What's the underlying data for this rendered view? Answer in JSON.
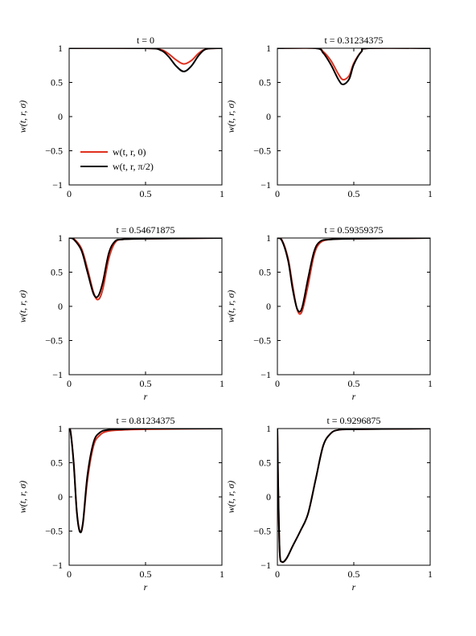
{
  "colors": {
    "series_0": "#e0301e",
    "series_pi2": "#000000",
    "frame": "#000000"
  },
  "chart_data": [
    {
      "type": "line",
      "title": "t = 0",
      "xlabel": "",
      "ylabel": "w(t, r, σ)",
      "xlim": [
        0,
        1
      ],
      "ylim": [
        -1,
        1
      ],
      "xticks": [
        "0",
        "0.5",
        "1"
      ],
      "yticks": [
        "1",
        "0.5",
        "0",
        "−0.5",
        "−1"
      ],
      "grid": false,
      "legend": {
        "placement": "lower-left",
        "entries": [
          "w(t, r, 0)",
          "w(t, r, π/2)"
        ]
      },
      "series": [
        {
          "name": "w(t, r, 0)",
          "x": [
            0,
            0.5,
            0.6,
            0.65,
            0.7,
            0.75,
            0.8,
            0.85,
            0.9,
            1.0
          ],
          "y": [
            1,
            1,
            0.98,
            0.92,
            0.83,
            0.77,
            0.82,
            0.93,
            0.99,
            1.0
          ]
        },
        {
          "name": "w(t, r, π/2)",
          "x": [
            0,
            0.5,
            0.6,
            0.65,
            0.7,
            0.75,
            0.8,
            0.85,
            0.9,
            1.0
          ],
          "y": [
            1,
            1,
            0.97,
            0.88,
            0.74,
            0.66,
            0.74,
            0.9,
            0.99,
            1.0
          ]
        }
      ]
    },
    {
      "type": "line",
      "title": "t = 0.31234375",
      "xlabel": "",
      "ylabel": "w(t, r, σ)",
      "xlim": [
        0,
        1
      ],
      "ylim": [
        -1,
        1
      ],
      "xticks": [
        "0",
        "0.5",
        "1"
      ],
      "yticks": [
        "1",
        "0.5",
        "0",
        "−0.5",
        "−1"
      ],
      "grid": false,
      "series": [
        {
          "name": "w(t, r, 0)",
          "x": [
            0,
            0.25,
            0.3,
            0.35,
            0.4,
            0.43,
            0.47,
            0.5,
            0.55,
            0.6,
            1.0
          ],
          "y": [
            1,
            1,
            0.95,
            0.82,
            0.62,
            0.54,
            0.6,
            0.78,
            0.95,
            1.0,
            1.0
          ]
        },
        {
          "name": "w(t, r, π/2)",
          "x": [
            0,
            0.25,
            0.3,
            0.35,
            0.4,
            0.43,
            0.47,
            0.5,
            0.55,
            0.6,
            1.0
          ],
          "y": [
            1,
            1,
            0.93,
            0.76,
            0.54,
            0.47,
            0.55,
            0.76,
            0.95,
            1.0,
            1.0
          ]
        }
      ]
    },
    {
      "type": "line",
      "title": "t = 0.54671875",
      "xlabel": "r",
      "ylabel": "w(t, r, σ)",
      "xlim": [
        0,
        1
      ],
      "ylim": [
        -1,
        1
      ],
      "xticks": [
        "0",
        "0.5",
        "1"
      ],
      "yticks": [
        "1",
        "0.5",
        "0",
        "−0.5",
        "−1"
      ],
      "grid": false,
      "series": [
        {
          "name": "w(t, r, 0)",
          "x": [
            0,
            0.03,
            0.08,
            0.12,
            0.16,
            0.19,
            0.22,
            0.26,
            0.3,
            0.35,
            0.5,
            1.0
          ],
          "y": [
            1,
            0.99,
            0.85,
            0.55,
            0.2,
            0.1,
            0.25,
            0.7,
            0.93,
            0.98,
            0.99,
            1.0
          ]
        },
        {
          "name": "w(t, r, π/2)",
          "x": [
            0,
            0.03,
            0.08,
            0.12,
            0.16,
            0.19,
            0.22,
            0.26,
            0.3,
            0.35,
            0.5,
            1.0
          ],
          "y": [
            1,
            0.98,
            0.82,
            0.5,
            0.18,
            0.15,
            0.35,
            0.78,
            0.95,
            0.98,
            0.99,
            1.0
          ]
        }
      ]
    },
    {
      "type": "line",
      "title": "t = 0.59359375",
      "xlabel": "r",
      "ylabel": "w(t, r, σ)",
      "xlim": [
        0,
        1
      ],
      "ylim": [
        -1,
        1
      ],
      "xticks": [
        "0",
        "0.5",
        "1"
      ],
      "yticks": [
        "1",
        "0.5",
        "0",
        "−0.5",
        "−1"
      ],
      "grid": false,
      "series": [
        {
          "name": "w(t, r, 0)",
          "x": [
            0,
            0.03,
            0.07,
            0.1,
            0.13,
            0.16,
            0.2,
            0.24,
            0.28,
            0.35,
            0.5,
            1.0
          ],
          "y": [
            1,
            0.97,
            0.7,
            0.3,
            -0.05,
            -0.08,
            0.3,
            0.75,
            0.93,
            0.98,
            0.99,
            1.0
          ]
        },
        {
          "name": "w(t, r, π/2)",
          "x": [
            0,
            0.03,
            0.07,
            0.1,
            0.13,
            0.16,
            0.2,
            0.24,
            0.28,
            0.35,
            0.5,
            1.0
          ],
          "y": [
            1,
            0.96,
            0.67,
            0.25,
            -0.04,
            -0.03,
            0.4,
            0.8,
            0.95,
            0.98,
            0.99,
            1.0
          ]
        }
      ]
    },
    {
      "type": "line",
      "title": "t = 0.81234375",
      "xlabel": "r",
      "ylabel": "w(t, r, σ)",
      "xlim": [
        0,
        1
      ],
      "ylim": [
        -1,
        1
      ],
      "xticks": [
        "0",
        "0.5",
        "1"
      ],
      "yticks": [
        "1",
        "0.5",
        "0",
        "−0.5",
        "−1"
      ],
      "grid": false,
      "series": [
        {
          "name": "w(t, r, 0)",
          "x": [
            0,
            0.01,
            0.03,
            0.05,
            0.07,
            0.09,
            0.12,
            0.16,
            0.2,
            0.25,
            0.35,
            0.5,
            1.0
          ],
          "y": [
            1,
            0.95,
            0.5,
            -0.2,
            -0.5,
            -0.4,
            0.25,
            0.75,
            0.9,
            0.96,
            0.98,
            0.99,
            1.0
          ]
        },
        {
          "name": "w(t, r, π/2)",
          "x": [
            0,
            0.01,
            0.03,
            0.05,
            0.07,
            0.09,
            0.12,
            0.16,
            0.2,
            0.25,
            0.35,
            0.5,
            1.0
          ],
          "y": [
            1,
            0.94,
            0.48,
            -0.22,
            -0.51,
            -0.38,
            0.32,
            0.8,
            0.94,
            0.98,
            0.99,
            1.0,
            1.0
          ]
        }
      ]
    },
    {
      "type": "line",
      "title": "t = 0.9296875",
      "xlabel": "r",
      "ylabel": "w(t, r, σ)",
      "xlim": [
        0,
        1
      ],
      "ylim": [
        -1,
        1
      ],
      "xticks": [
        "0",
        "0.5",
        "1"
      ],
      "yticks": [
        "1",
        "0.5",
        "0",
        "−0.5",
        "−1"
      ],
      "grid": false,
      "series": [
        {
          "name": "w(t, r, 0)",
          "x": [
            0,
            0.005,
            0.015,
            0.03,
            0.06,
            0.1,
            0.15,
            0.2,
            0.25,
            0.3,
            0.35,
            0.4,
            0.5,
            1.0
          ],
          "y": [
            1,
            0.2,
            -0.8,
            -0.95,
            -0.9,
            -0.72,
            -0.5,
            -0.25,
            0.25,
            0.75,
            0.93,
            0.98,
            0.99,
            1.0
          ]
        },
        {
          "name": "w(t, r, π/2)",
          "x": [
            0,
            0.005,
            0.015,
            0.03,
            0.06,
            0.1,
            0.15,
            0.2,
            0.25,
            0.3,
            0.35,
            0.4,
            0.5,
            1.0
          ],
          "y": [
            1,
            0.2,
            -0.8,
            -0.95,
            -0.9,
            -0.72,
            -0.5,
            -0.25,
            0.25,
            0.75,
            0.93,
            0.98,
            0.99,
            1.0
          ]
        }
      ]
    }
  ]
}
